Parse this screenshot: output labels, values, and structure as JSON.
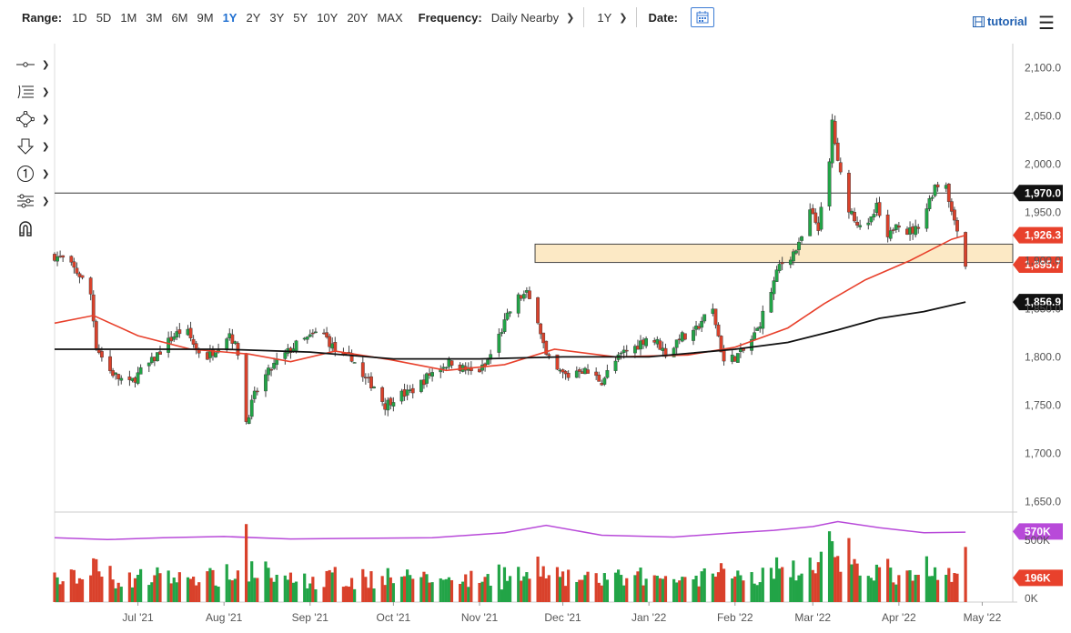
{
  "toolbar": {
    "range_label": "Range:",
    "ranges": [
      "1D",
      "5D",
      "1M",
      "3M",
      "6M",
      "9M",
      "1Y",
      "2Y",
      "3Y",
      "5Y",
      "10Y",
      "20Y",
      "MAX"
    ],
    "active_range": "1Y",
    "frequency_label": "Frequency:",
    "frequency_value": "Daily Nearby",
    "period_value": "1Y",
    "date_label": "Date:",
    "tutorial_label": "tutorial",
    "accent": "#1f6fd1"
  },
  "tools": [
    {
      "icon": "line-tool-icon"
    },
    {
      "icon": "fib-tool-icon"
    },
    {
      "icon": "shape-tool-icon"
    },
    {
      "icon": "arrow-down-tool-icon"
    },
    {
      "icon": "count-tool-icon"
    },
    {
      "icon": "settings-tool-icon"
    },
    {
      "icon": "magnet-tool-icon"
    }
  ],
  "chart_data": {
    "type": "candlestick",
    "x_ticks": [
      "Jul '21",
      "Aug '21",
      "Sep '21",
      "Oct '21",
      "Nov '21",
      "Dec '21",
      "Jan '22",
      "Feb '22",
      "Mar '22",
      "Apr '22",
      "May '22"
    ],
    "x_tick_dates": [
      "2021-07-01",
      "2021-08-01",
      "2021-09-01",
      "2021-10-01",
      "2021-11-01",
      "2021-12-01",
      "2022-01-01",
      "2022-02-01",
      "2022-03-01",
      "2022-04-01",
      "2022-05-01"
    ],
    "y_ticks": [
      "2,100.0",
      "2,050.0",
      "2,000.0",
      "1,950.0",
      "1,900.0",
      "1,850.0",
      "1,800.0",
      "1,750.0",
      "1,700.0",
      "1,650.0"
    ],
    "y_tick_values": [
      2100,
      2050,
      2000,
      1950,
      1900,
      1850,
      1800,
      1750,
      1700,
      1650
    ],
    "ylim": [
      1640,
      2125
    ],
    "xlim": [
      "2021-06-01",
      "2022-05-12"
    ],
    "close_path": [
      [
        "2021-06-01",
        1905
      ],
      [
        "2021-06-05",
        1900
      ],
      [
        "2021-06-10",
        1885
      ],
      [
        "2021-06-14",
        1865
      ],
      [
        "2021-06-16",
        1812
      ],
      [
        "2021-06-20",
        1788
      ],
      [
        "2021-06-24",
        1778
      ],
      [
        "2021-06-28",
        1772
      ],
      [
        "2021-07-02",
        1785
      ],
      [
        "2021-07-06",
        1795
      ],
      [
        "2021-07-10",
        1810
      ],
      [
        "2021-07-14",
        1822
      ],
      [
        "2021-07-18",
        1830
      ],
      [
        "2021-07-22",
        1808
      ],
      [
        "2021-07-26",
        1800
      ],
      [
        "2021-07-30",
        1812
      ],
      [
        "2021-08-03",
        1825
      ],
      [
        "2021-08-06",
        1805
      ],
      [
        "2021-08-09",
        1733
      ],
      [
        "2021-08-12",
        1760
      ],
      [
        "2021-08-16",
        1780
      ],
      [
        "2021-08-20",
        1795
      ],
      [
        "2021-08-24",
        1805
      ],
      [
        "2021-08-28",
        1815
      ],
      [
        "2021-09-01",
        1820
      ],
      [
        "2021-09-05",
        1828
      ],
      [
        "2021-09-08",
        1815
      ],
      [
        "2021-09-12",
        1798
      ],
      [
        "2021-09-16",
        1800
      ],
      [
        "2021-09-20",
        1778
      ],
      [
        "2021-09-24",
        1770
      ],
      [
        "2021-09-28",
        1750
      ],
      [
        "2021-10-02",
        1760
      ],
      [
        "2021-10-06",
        1762
      ],
      [
        "2021-10-10",
        1770
      ],
      [
        "2021-10-14",
        1782
      ],
      [
        "2021-10-18",
        1790
      ],
      [
        "2021-10-22",
        1795
      ],
      [
        "2021-10-26",
        1788
      ],
      [
        "2021-10-30",
        1783
      ],
      [
        "2021-11-03",
        1790
      ],
      [
        "2021-11-07",
        1815
      ],
      [
        "2021-11-10",
        1835
      ],
      [
        "2021-11-14",
        1860
      ],
      [
        "2021-11-18",
        1865
      ],
      [
        "2021-11-22",
        1840
      ],
      [
        "2021-11-25",
        1800
      ],
      [
        "2021-11-29",
        1785
      ],
      [
        "2021-12-03",
        1780
      ],
      [
        "2021-12-07",
        1788
      ],
      [
        "2021-12-11",
        1782
      ],
      [
        "2021-12-15",
        1775
      ],
      [
        "2021-12-19",
        1792
      ],
      [
        "2021-12-23",
        1805
      ],
      [
        "2021-12-27",
        1810
      ],
      [
        "2021-12-31",
        1820
      ],
      [
        "2022-01-04",
        1815
      ],
      [
        "2022-01-08",
        1800
      ],
      [
        "2022-01-12",
        1822
      ],
      [
        "2022-01-16",
        1818
      ],
      [
        "2022-01-20",
        1838
      ],
      [
        "2022-01-24",
        1848
      ],
      [
        "2022-01-28",
        1795
      ],
      [
        "2022-02-01",
        1800
      ],
      [
        "2022-02-05",
        1808
      ],
      [
        "2022-02-09",
        1828
      ],
      [
        "2022-02-13",
        1860
      ],
      [
        "2022-02-17",
        1895
      ],
      [
        "2022-02-21",
        1905
      ],
      [
        "2022-02-24",
        1915
      ],
      [
        "2022-02-28",
        1950
      ],
      [
        "2022-03-03",
        1935
      ],
      [
        "2022-03-07",
        2000
      ],
      [
        "2022-03-08",
        2045
      ],
      [
        "2022-03-10",
        2000
      ],
      [
        "2022-03-14",
        1955
      ],
      [
        "2022-03-17",
        1940
      ],
      [
        "2022-03-21",
        1935
      ],
      [
        "2022-03-24",
        1955
      ],
      [
        "2022-03-28",
        1920
      ],
      [
        "2022-03-31",
        1942
      ],
      [
        "2022-04-04",
        1930
      ],
      [
        "2022-04-07",
        1932
      ],
      [
        "2022-04-11",
        1955
      ],
      [
        "2022-04-14",
        1978
      ],
      [
        "2022-04-18",
        1980
      ],
      [
        "2022-04-20",
        1950
      ],
      [
        "2022-04-22",
        1935
      ],
      [
        "2022-04-25",
        1895
      ]
    ],
    "series": [
      {
        "name": "",
        "color": "#e8412c",
        "points": [
          [
            "2021-06-01",
            1835
          ],
          [
            "2021-06-15",
            1843
          ],
          [
            "2021-07-01",
            1822
          ],
          [
            "2021-07-20",
            1808
          ],
          [
            "2021-08-10",
            1803
          ],
          [
            "2021-08-25",
            1795
          ],
          [
            "2021-09-10",
            1806
          ],
          [
            "2021-09-30",
            1797
          ],
          [
            "2021-10-20",
            1786
          ],
          [
            "2021-11-10",
            1792
          ],
          [
            "2021-11-28",
            1808
          ],
          [
            "2021-12-20",
            1800
          ],
          [
            "2022-01-15",
            1802
          ],
          [
            "2022-02-01",
            1810
          ],
          [
            "2022-02-20",
            1830
          ],
          [
            "2022-03-05",
            1855
          ],
          [
            "2022-03-20",
            1880
          ],
          [
            "2022-04-05",
            1900
          ],
          [
            "2022-04-20",
            1922
          ],
          [
            "2022-04-25",
            1926.3
          ]
        ]
      },
      {
        "name": "",
        "color": "#111111",
        "points": [
          [
            "2021-06-01",
            1808
          ],
          [
            "2021-07-01",
            1808
          ],
          [
            "2021-08-01",
            1808
          ],
          [
            "2021-09-01",
            1805
          ],
          [
            "2021-10-01",
            1798
          ],
          [
            "2021-11-01",
            1798
          ],
          [
            "2021-12-01",
            1800
          ],
          [
            "2022-01-01",
            1800
          ],
          [
            "2022-02-01",
            1808
          ],
          [
            "2022-02-20",
            1815
          ],
          [
            "2022-03-10",
            1828
          ],
          [
            "2022-03-25",
            1840
          ],
          [
            "2022-04-10",
            1847
          ],
          [
            "2022-04-25",
            1856.9
          ]
        ]
      }
    ],
    "hlines": [
      {
        "value": 1970
      }
    ],
    "zone": {
      "from": "2021-11-21",
      "to": "2022-05-12",
      "low": 1898,
      "high": 1917,
      "fill": "#fce9c5"
    },
    "value_labels": [
      {
        "text": "1,970.0",
        "value": 1970,
        "bg": "#111111"
      },
      {
        "text": "1,926.3",
        "value": 1926.3,
        "bg": "#e8412c"
      },
      {
        "text": "1,895.7",
        "value": 1895.7,
        "bg": "#e8412c"
      },
      {
        "text": "1,856.9",
        "value": 1856.9,
        "bg": "#111111"
      }
    ],
    "volume": {
      "y_ticks": [
        "500K",
        "0K"
      ],
      "y_tick_values": [
        500000,
        0
      ],
      "ylim": [
        0,
        720000
      ],
      "avg_line_color": "#b84ad9",
      "avg_points": [
        [
          "2021-06-01",
          520000
        ],
        [
          "2021-06-20",
          505000
        ],
        [
          "2021-07-10",
          520000
        ],
        [
          "2021-08-01",
          530000
        ],
        [
          "2021-08-25",
          510000
        ],
        [
          "2021-09-20",
          515000
        ],
        [
          "2021-10-15",
          520000
        ],
        [
          "2021-11-10",
          560000
        ],
        [
          "2021-11-25",
          620000
        ],
        [
          "2021-12-15",
          540000
        ],
        [
          "2022-01-10",
          525000
        ],
        [
          "2022-02-01",
          560000
        ],
        [
          "2022-02-15",
          580000
        ],
        [
          "2022-03-01",
          610000
        ],
        [
          "2022-03-10",
          650000
        ],
        [
          "2022-03-25",
          600000
        ],
        [
          "2022-04-10",
          560000
        ],
        [
          "2022-04-25",
          565000
        ]
      ],
      "labels": [
        {
          "text": "570K",
          "value": 570000,
          "bg": "#b84ad9"
        },
        {
          "text": "196K",
          "value": 196000,
          "bg": "#e8412c"
        }
      ]
    }
  }
}
